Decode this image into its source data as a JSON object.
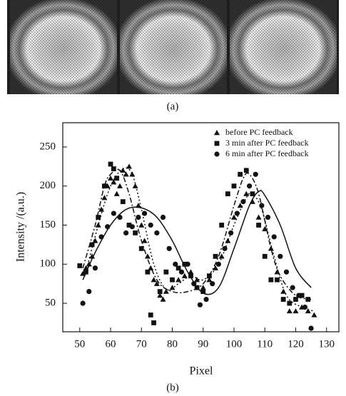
{
  "chart_data": {
    "type": "scatter",
    "panel_labels": [
      "(a)",
      "(b)"
    ],
    "x_label": "Pixel",
    "y_label": "Intensity /(a.u.)",
    "xlim": [
      44.5,
      134
    ],
    "ylim": [
      13.5,
      281
    ],
    "xticks": [
      50,
      60,
      70,
      80,
      90,
      100,
      110,
      120,
      130
    ],
    "yticks": [
      50,
      100,
      150,
      200,
      250
    ],
    "legend": "top-right",
    "series": [
      {
        "name": "before PC feedback",
        "marker": "triangle",
        "color": "#111111",
        "x": [
          51,
          52,
          53,
          54,
          55,
          56,
          57,
          58,
          59,
          60,
          61,
          62,
          63,
          64,
          65,
          66,
          67,
          68,
          69,
          70,
          71,
          72,
          73,
          74,
          75,
          76,
          77,
          78,
          80,
          82,
          84,
          86,
          88,
          90,
          92,
          94,
          96,
          98,
          100,
          102,
          104,
          106,
          108,
          110,
          112,
          114,
          116,
          118,
          120,
          122,
          124,
          126
        ],
        "values": [
          88,
          95,
          100,
          110,
          130,
          150,
          170,
          185,
          200,
          210,
          205,
          190,
          200,
          220,
          215,
          225,
          215,
          200,
          175,
          150,
          130,
          110,
          95,
          80,
          75,
          60,
          55,
          65,
          70,
          80,
          85,
          90,
          80,
          70,
          80,
          95,
          110,
          130,
          160,
          175,
          190,
          180,
          160,
          145,
          120,
          90,
          65,
          40,
          40,
          45,
          40,
          35
        ]
      },
      {
        "name": "3 min after PC feedback",
        "marker": "square",
        "color": "#111111",
        "x": [
          50,
          52,
          54,
          56,
          58,
          60,
          61,
          62,
          64,
          66,
          68,
          70,
          72,
          73,
          74,
          76,
          78,
          80,
          82,
          84,
          86,
          88,
          90,
          92,
          94,
          96,
          98,
          100,
          102,
          104,
          106,
          108,
          110,
          112,
          114,
          116,
          118,
          120,
          122,
          124
        ],
        "values": [
          98,
          90,
          125,
          160,
          200,
          228,
          222,
          210,
          180,
          150,
          140,
          120,
          90,
          35,
          25,
          65,
          90,
          80,
          95,
          100,
          85,
          70,
          65,
          85,
          110,
          150,
          190,
          200,
          215,
          220,
          190,
          150,
          110,
          80,
          80,
          55,
          50,
          55,
          60,
          55
        ]
      },
      {
        "name": "6 min after PC feedback",
        "marker": "circle",
        "color": "#111111",
        "x": [
          51,
          53,
          55,
          57,
          59,
          61,
          63,
          65,
          67,
          69,
          71,
          73,
          75,
          77,
          79,
          81,
          83,
          85,
          87,
          89,
          91,
          93,
          95,
          97,
          99,
          101,
          103,
          105,
          107,
          109,
          111,
          113,
          115,
          117,
          119,
          121,
          123,
          125
        ],
        "values": [
          50,
          65,
          95,
          135,
          148,
          165,
          160,
          140,
          148,
          160,
          165,
          150,
          140,
          160,
          120,
          100,
          90,
          100,
          75,
          48,
          55,
          75,
          100,
          120,
          140,
          165,
          180,
          200,
          215,
          175,
          160,
          135,
          110,
          90,
          70,
          60,
          45,
          18
        ]
      }
    ],
    "fit_curves": [
      {
        "dash": "2 3",
        "x": [
          52,
          56,
          60,
          64,
          67,
          70,
          74,
          78,
          82,
          86,
          90,
          95,
          100,
          104,
          106,
          109,
          113,
          117,
          122,
          126
        ],
        "values": [
          90,
          150,
          200,
          222,
          215,
          170,
          100,
          68,
          75,
          85,
          80,
          100,
          150,
          185,
          190,
          170,
          110,
          60,
          45,
          40
        ]
      },
      {
        "dash": "7 3 2 3",
        "x": [
          51,
          55,
          58,
          60,
          63,
          66,
          70,
          75,
          80,
          85,
          90,
          95,
          100,
          103,
          105,
          108,
          112,
          115,
          120,
          125
        ],
        "values": [
          95,
          150,
          200,
          215,
          220,
          190,
          130,
          80,
          65,
          65,
          75,
          110,
          175,
          210,
          215,
          190,
          120,
          85,
          60,
          55
        ]
      },
      {
        "dash": "",
        "x": [
          51,
          55,
          60,
          65,
          70,
          75,
          80,
          85,
          90,
          95,
          100,
          105,
          108,
          110,
          115,
          120,
          125
        ],
        "values": [
          80,
          115,
          150,
          170,
          172,
          160,
          130,
          90,
          63,
          70,
          120,
          175,
          193,
          188,
          150,
          95,
          70
        ]
      }
    ]
  }
}
